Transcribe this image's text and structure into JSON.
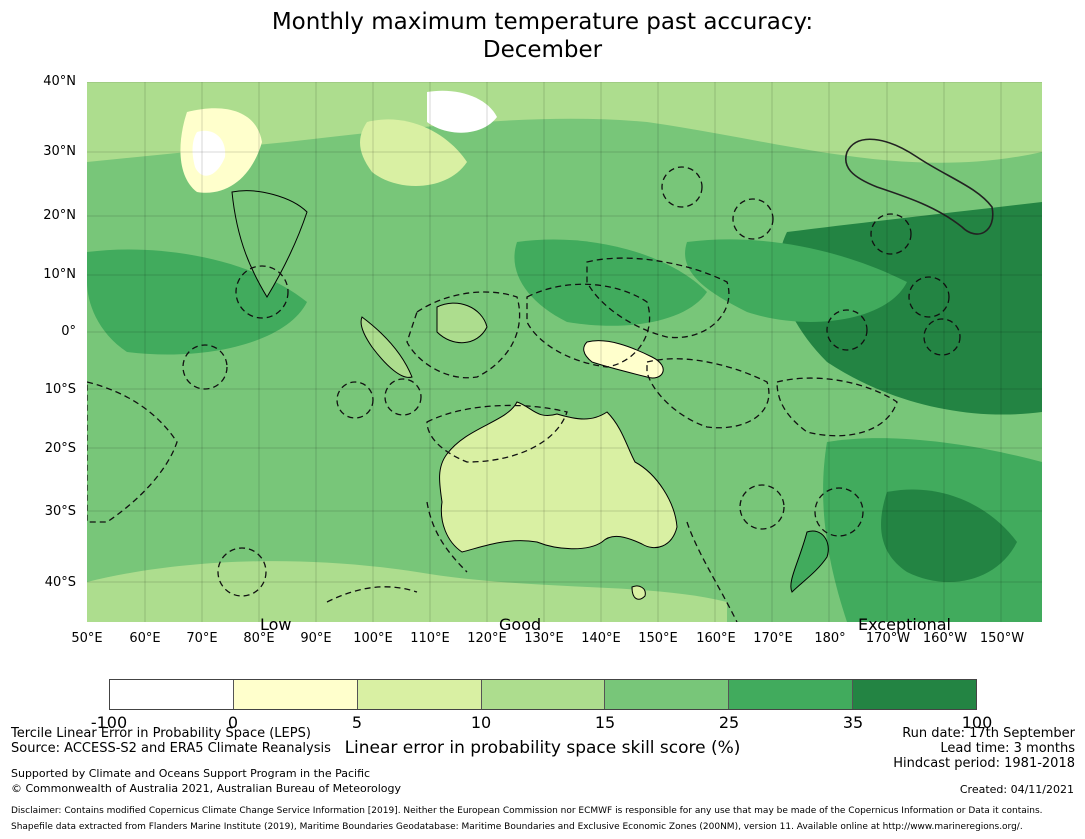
{
  "title": {
    "line1": "Monthly maximum temperature past accuracy:",
    "line2": "December"
  },
  "latitude_labels": [
    "40°N",
    "30°N",
    "20°N",
    "10°N",
    "0°",
    "10°S",
    "20°S",
    "30°S",
    "40°S"
  ],
  "longitude_labels": [
    "50°E",
    "60°E",
    "70°E",
    "80°E",
    "90°E",
    "100°E",
    "110°E",
    "120°E",
    "130°E",
    "140°E",
    "150°E",
    "160°E",
    "170°E",
    "180°",
    "170°W",
    "160°W",
    "150°W"
  ],
  "skill_words": {
    "low": "Low",
    "good": "Good",
    "exceptional": "Exceptional"
  },
  "colorbar": {
    "ticks": [
      "-100",
      "0",
      "5",
      "10",
      "15",
      "25",
      "35",
      "100"
    ],
    "colors": [
      "#ffffff",
      "#ffffcc",
      "#d9f0a3",
      "#addd8e",
      "#78c679",
      "#41ab5d",
      "#238443"
    ],
    "label": "Linear error in probability space skill score (%)"
  },
  "footer": {
    "left1": "Tercile Linear Error in Probability Space (LEPS)",
    "left2": "Source: ACCESS-S2 and ERA5 Climate Reanalysis",
    "support1": "Supported by Climate and Oceans Support Program in the Pacific",
    "support2": "© Commonwealth of Australia 2021, Australian Bureau of Meteorology",
    "run_date": "Run date: 17th September",
    "lead_time": "Lead time: 3 months",
    "hindcast": "Hindcast period: 1981-2018",
    "created": "Created: 04/11/2021",
    "disclaimer": "Disclaimer: Contains modified Copernicus Climate Change Service Information [2019]. Neither the European Commission nor ECMWF is responsible for any use that may be made of the Copernicus Information or Data it contains.",
    "shapefile": "Shapefile data extracted from Flanders Marine Institute (2019), Maritime Boundaries Geodatabase: Maritime Boundaries and Exclusive Economic Zones (200NM), version 11. Available online at http://www.marineregions.org/."
  }
}
